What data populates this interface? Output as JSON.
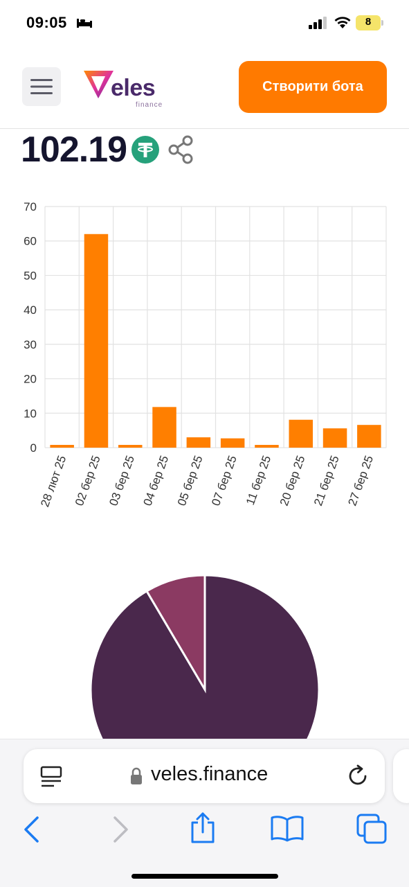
{
  "status_bar": {
    "time": "09:05",
    "battery": "8"
  },
  "header": {
    "logo_text": "eles",
    "logo_subtext": "finance",
    "create_bot_label": "Створити бота"
  },
  "balance": {
    "value": "102.19",
    "currency_icon": "tether-usdt-icon"
  },
  "colors": {
    "accent": "#ff7a00",
    "bar": "#ff7f00",
    "pie_main": "#4a284c",
    "pie_secondary": "#8b3a62",
    "title": "#15152e"
  },
  "chart_data": [
    {
      "type": "bar",
      "categories": [
        "28 лют 25",
        "02 бер 25",
        "03 бер 25",
        "04 бер 25",
        "05 бер 25",
        "07 бер 25",
        "11 бер 25",
        "20 бер 25",
        "21 бер 25",
        "27 бер 25"
      ],
      "values": [
        0.8,
        62,
        0.8,
        11.8,
        3,
        2.7,
        0.8,
        8.1,
        5.6,
        6.6
      ],
      "ylim": [
        0,
        70
      ],
      "yticks": [
        0,
        10,
        20,
        30,
        40,
        50,
        60,
        70
      ],
      "grid": true
    },
    {
      "type": "pie",
      "values": [
        91.5,
        8.5
      ],
      "colors": [
        "#4a284c",
        "#8b3a62"
      ]
    }
  ],
  "browser": {
    "url": "veles.finance"
  }
}
